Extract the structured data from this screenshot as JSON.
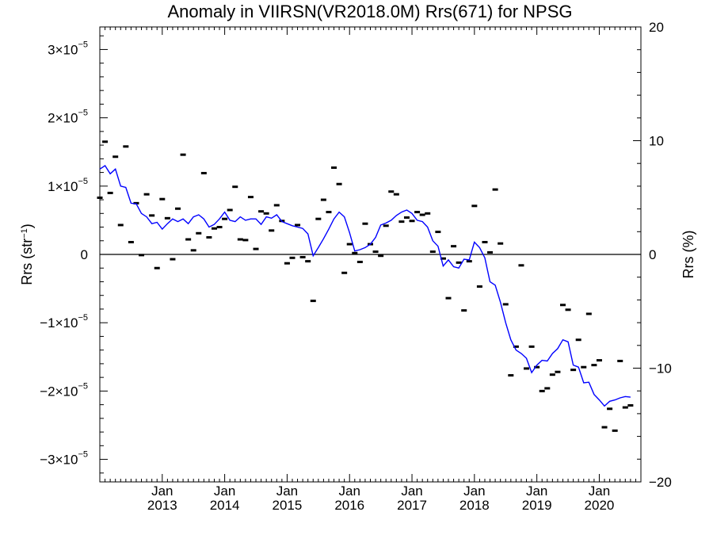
{
  "chart_data": {
    "type": "line",
    "title": "Anomaly in VIIRSN(VR2018.0M) Rrs(671) for NPSG",
    "ylabel_left": "Rrs (str",
    "ylabel_left_sup": "−1",
    "ylabel_left_end": ")",
    "ylabel_right": "Rrs (%)",
    "x_range": [
      "2012-01",
      "2020-09"
    ],
    "ylim_left": [
      -3.33e-05,
      3.33e-05
    ],
    "ylim_right": [
      -20,
      20
    ],
    "y_ticks_left": [
      {
        "value": 3e-05,
        "mant": "3×10",
        "exp": "−5"
      },
      {
        "value": 2e-05,
        "mant": "2×10",
        "exp": "−5"
      },
      {
        "value": 1e-05,
        "mant": "1×10",
        "exp": "−5"
      },
      {
        "value": 0,
        "mant": "0",
        "exp": ""
      },
      {
        "value": -1e-05,
        "mant": "−1×10",
        "exp": "−5"
      },
      {
        "value": -2e-05,
        "mant": "−2×10",
        "exp": "−5"
      },
      {
        "value": -3e-05,
        "mant": "−3×10",
        "exp": "−5"
      }
    ],
    "y_ticks_right": [
      20,
      10,
      0,
      -10,
      -20
    ],
    "x_ticks": [
      {
        "date": "2013-01",
        "month": "Jan",
        "year": "2013"
      },
      {
        "date": "2014-01",
        "month": "Jan",
        "year": "2014"
      },
      {
        "date": "2015-01",
        "month": "Jan",
        "year": "2015"
      },
      {
        "date": "2016-01",
        "month": "Jan",
        "year": "2016"
      },
      {
        "date": "2017-01",
        "month": "Jan",
        "year": "2017"
      },
      {
        "date": "2018-01",
        "month": "Jan",
        "year": "2018"
      },
      {
        "date": "2019-01",
        "month": "Jan",
        "year": "2019"
      },
      {
        "date": "2020-01",
        "month": "Jan",
        "year": "2020"
      }
    ],
    "zero_line": true,
    "colors": {
      "line": "#0000ff",
      "points": "#000000",
      "zero_line": "#000000"
    },
    "series": [
      {
        "style": "dashes",
        "points": [
          [
            "2012-01",
            8.3e-06
          ],
          [
            "2012-02",
            1.65e-05
          ],
          [
            "2012-03",
            9e-06
          ],
          [
            "2012-04",
            1.43e-05
          ],
          [
            "2012-05",
            4.3e-06
          ],
          [
            "2012-06",
            1.58e-05
          ],
          [
            "2012-07",
            1.8e-06
          ],
          [
            "2012-08",
            7.5e-06
          ],
          [
            "2012-09",
            -1e-07
          ],
          [
            "2012-10",
            8.8e-06
          ],
          [
            "2012-11",
            5.7e-06
          ],
          [
            "2012-12",
            -2e-06
          ],
          [
            "2013-01",
            8.1e-06
          ],
          [
            "2013-02",
            5.3e-06
          ],
          [
            "2013-03",
            -7e-07
          ],
          [
            "2013-04",
            6.7e-06
          ],
          [
            "2013-05",
            1.46e-05
          ],
          [
            "2013-06",
            2.2e-06
          ],
          [
            "2013-07",
            6e-07
          ],
          [
            "2013-08",
            3.1e-06
          ],
          [
            "2013-09",
            1.19e-05
          ],
          [
            "2013-10",
            2.5e-06
          ],
          [
            "2013-11",
            3.8e-06
          ],
          [
            "2013-12",
            4e-06
          ],
          [
            "2014-01",
            5.2e-06
          ],
          [
            "2014-02",
            6.5e-06
          ],
          [
            "2014-03",
            9.9e-06
          ],
          [
            "2014-04",
            2.2e-06
          ],
          [
            "2014-05",
            2.1e-06
          ],
          [
            "2014-06",
            8.4e-06
          ],
          [
            "2014-07",
            8e-07
          ],
          [
            "2014-08",
            6.3e-06
          ],
          [
            "2014-09",
            6e-06
          ],
          [
            "2014-10",
            3.5e-06
          ],
          [
            "2014-11",
            7.2e-06
          ],
          [
            "2014-12",
            4.9e-06
          ],
          [
            "2015-01",
            -1.3e-06
          ],
          [
            "2015-02",
            -5e-07
          ],
          [
            "2015-03",
            4.3e-06
          ],
          [
            "2015-04",
            -4e-07
          ],
          [
            "2015-05",
            -1e-06
          ],
          [
            "2015-06",
            -6.8e-06
          ],
          [
            "2015-07",
            5.2e-06
          ],
          [
            "2015-08",
            8e-06
          ],
          [
            "2015-09",
            6.2e-06
          ],
          [
            "2015-10",
            1.27e-05
          ],
          [
            "2015-11",
            1.03e-05
          ],
          [
            "2015-12",
            -2.7e-06
          ],
          [
            "2016-01",
            1.5e-06
          ],
          [
            "2016-02",
            2e-07
          ],
          [
            "2016-03",
            -1.1e-06
          ],
          [
            "2016-04",
            4.5e-06
          ],
          [
            "2016-05",
            1.5e-06
          ],
          [
            "2016-06",
            4e-07
          ],
          [
            "2016-07",
            -2e-07
          ],
          [
            "2016-08",
            4.2e-06
          ],
          [
            "2016-09",
            9.2e-06
          ],
          [
            "2016-10",
            8.8e-06
          ],
          [
            "2016-11",
            4.8e-06
          ],
          [
            "2016-12",
            5.4e-06
          ],
          [
            "2017-01",
            4.9e-06
          ],
          [
            "2017-02",
            6.2e-06
          ],
          [
            "2017-03",
            5.8e-06
          ],
          [
            "2017-04",
            6e-06
          ],
          [
            "2017-05",
            4e-07
          ],
          [
            "2017-06",
            3.3e-06
          ],
          [
            "2017-07",
            -6e-07
          ],
          [
            "2017-08",
            -6.4e-06
          ],
          [
            "2017-09",
            1.2e-06
          ],
          [
            "2017-10",
            -1.2e-06
          ],
          [
            "2017-11",
            -8.2e-06
          ],
          [
            "2017-12",
            -1e-06
          ],
          [
            "2018-01",
            7.1e-06
          ],
          [
            "2018-02",
            -4.7e-06
          ],
          [
            "2018-03",
            1.8e-06
          ],
          [
            "2018-04",
            3e-07
          ],
          [
            "2018-05",
            9.5e-06
          ],
          [
            "2018-06",
            1.6e-06
          ],
          [
            "2018-07",
            -7.3e-06
          ],
          [
            "2018-08",
            -1.77e-05
          ],
          [
            "2018-09",
            -1.35e-05
          ],
          [
            "2018-10",
            -1.6e-06
          ],
          [
            "2018-11",
            -1.67e-05
          ],
          [
            "2018-12",
            -1.35e-05
          ],
          [
            "2019-01",
            -1.65e-05
          ],
          [
            "2019-02",
            -2e-05
          ],
          [
            "2019-03",
            -1.96e-05
          ],
          [
            "2019-04",
            -1.76e-05
          ],
          [
            "2019-05",
            -1.72e-05
          ],
          [
            "2019-06",
            -7.4e-06
          ],
          [
            "2019-07",
            -8.1e-06
          ],
          [
            "2019-08",
            -1.69e-05
          ],
          [
            "2019-09",
            -1.25e-05
          ],
          [
            "2019-10",
            -1.65e-05
          ],
          [
            "2019-11",
            -8.7e-06
          ],
          [
            "2019-12",
            -1.62e-05
          ],
          [
            "2020-01",
            -1.55e-05
          ],
          [
            "2020-02",
            -2.53e-05
          ],
          [
            "2020-03",
            -2.26e-05
          ],
          [
            "2020-04",
            -2.58e-05
          ],
          [
            "2020-05",
            -1.56e-05
          ],
          [
            "2020-06",
            -2.24e-05
          ],
          [
            "2020-07",
            -2.21e-05
          ]
        ]
      },
      {
        "style": "line",
        "points": [
          [
            "2012-01",
            1.25e-05
          ],
          [
            "2012-02",
            1.3e-05
          ],
          [
            "2012-03",
            1.18e-05
          ],
          [
            "2012-04",
            1.25e-05
          ],
          [
            "2012-05",
            1e-05
          ],
          [
            "2012-06",
            9.8e-06
          ],
          [
            "2012-07",
            7.5e-06
          ],
          [
            "2012-08",
            7.4e-06
          ],
          [
            "2012-09",
            6e-06
          ],
          [
            "2012-10",
            5.5e-06
          ],
          [
            "2012-11",
            4.5e-06
          ],
          [
            "2012-12",
            4.7e-06
          ],
          [
            "2013-01",
            3.7e-06
          ],
          [
            "2013-02",
            4.5e-06
          ],
          [
            "2013-03",
            5.2e-06
          ],
          [
            "2013-04",
            4.8e-06
          ],
          [
            "2013-05",
            5.2e-06
          ],
          [
            "2013-06",
            4.5e-06
          ],
          [
            "2013-07",
            5.5e-06
          ],
          [
            "2013-08",
            5.8e-06
          ],
          [
            "2013-09",
            5.2e-06
          ],
          [
            "2013-10",
            4e-06
          ],
          [
            "2013-11",
            4.4e-06
          ],
          [
            "2013-12",
            5.2e-06
          ],
          [
            "2014-01",
            6.2e-06
          ],
          [
            "2014-02",
            5e-06
          ],
          [
            "2014-03",
            4.8e-06
          ],
          [
            "2014-04",
            5.5e-06
          ],
          [
            "2014-05",
            5e-06
          ],
          [
            "2014-06",
            5.2e-06
          ],
          [
            "2014-07",
            5.2e-06
          ],
          [
            "2014-08",
            4.4e-06
          ],
          [
            "2014-09",
            5.5e-06
          ],
          [
            "2014-10",
            5.3e-06
          ],
          [
            "2014-11",
            5.8e-06
          ],
          [
            "2014-12",
            4.8e-06
          ],
          [
            "2015-01",
            4.5e-06
          ],
          [
            "2015-02",
            4.2e-06
          ],
          [
            "2015-03",
            4e-06
          ],
          [
            "2015-04",
            3.8e-06
          ],
          [
            "2015-05",
            3e-06
          ],
          [
            "2015-06",
            -2e-07
          ],
          [
            "2015-07",
            1e-06
          ],
          [
            "2015-08",
            2.3e-06
          ],
          [
            "2015-09",
            3.7e-06
          ],
          [
            "2015-10",
            5.2e-06
          ],
          [
            "2015-11",
            6.2e-06
          ],
          [
            "2015-12",
            5.5e-06
          ],
          [
            "2016-01",
            3.2e-06
          ],
          [
            "2016-02",
            5e-07
          ],
          [
            "2016-03",
            7e-07
          ],
          [
            "2016-04",
            1e-06
          ],
          [
            "2016-05",
            1.5e-06
          ],
          [
            "2016-06",
            2.5e-06
          ],
          [
            "2016-07",
            4.3e-06
          ],
          [
            "2016-08",
            4.6e-06
          ],
          [
            "2016-09",
            5e-06
          ],
          [
            "2016-10",
            5.7e-06
          ],
          [
            "2016-11",
            6.2e-06
          ],
          [
            "2016-12",
            6.5e-06
          ],
          [
            "2017-01",
            6e-06
          ],
          [
            "2017-02",
            5e-06
          ],
          [
            "2017-03",
            4.8e-06
          ],
          [
            "2017-04",
            4e-06
          ],
          [
            "2017-05",
            2e-06
          ],
          [
            "2017-06",
            1.2e-06
          ],
          [
            "2017-07",
            -1.7e-06
          ],
          [
            "2017-08",
            -8e-07
          ],
          [
            "2017-09",
            -1.8e-06
          ],
          [
            "2017-10",
            -2e-06
          ],
          [
            "2017-11",
            -7e-07
          ],
          [
            "2017-12",
            -8e-07
          ],
          [
            "2018-01",
            1.8e-06
          ],
          [
            "2018-02",
            1e-06
          ],
          [
            "2018-03",
            -5e-07
          ],
          [
            "2018-04",
            -4e-06
          ],
          [
            "2018-05",
            -4.5e-06
          ],
          [
            "2018-06",
            -7e-06
          ],
          [
            "2018-07",
            -1e-05
          ],
          [
            "2018-08",
            -1.25e-05
          ],
          [
            "2018-09",
            -1.4e-05
          ],
          [
            "2018-10",
            -1.45e-05
          ],
          [
            "2018-11",
            -1.52e-05
          ],
          [
            "2018-12",
            -1.73e-05
          ],
          [
            "2019-01",
            -1.62e-05
          ],
          [
            "2019-02",
            -1.55e-05
          ],
          [
            "2019-03",
            -1.56e-05
          ],
          [
            "2019-04",
            -1.45e-05
          ],
          [
            "2019-05",
            -1.38e-05
          ],
          [
            "2019-06",
            -1.25e-05
          ],
          [
            "2019-07",
            -1.28e-05
          ],
          [
            "2019-08",
            -1.62e-05
          ],
          [
            "2019-09",
            -1.65e-05
          ],
          [
            "2019-10",
            -1.88e-05
          ],
          [
            "2019-11",
            -1.87e-05
          ],
          [
            "2019-12",
            -2.05e-05
          ],
          [
            "2020-01",
            -2.13e-05
          ],
          [
            "2020-02",
            -2.22e-05
          ],
          [
            "2020-03",
            -2.15e-05
          ],
          [
            "2020-04",
            -2.13e-05
          ],
          [
            "2020-05",
            -2.1e-05
          ],
          [
            "2020-06",
            -2.08e-05
          ],
          [
            "2020-07",
            -2.09e-05
          ]
        ]
      }
    ]
  }
}
